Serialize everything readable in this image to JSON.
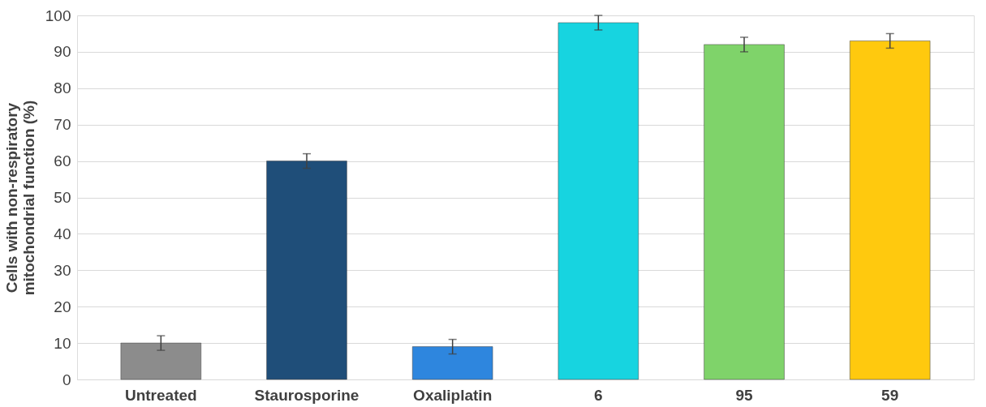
{
  "chart_data": {
    "type": "bar",
    "ylabel": "Cells with non-respiratory mitochondrial function (%)",
    "categories": [
      "Untreated",
      "Staurosporine",
      "Oxaliplatin",
      "6",
      "95",
      "59"
    ],
    "values": [
      10,
      60,
      9,
      98,
      92,
      93
    ],
    "errors": [
      2,
      2,
      2,
      2,
      2,
      2
    ],
    "colors": [
      "#8c8c8c",
      "#1f4e79",
      "#2e86de",
      "#17d4e0",
      "#7fd36a",
      "#ffc90e"
    ],
    "ylim": [
      0,
      100
    ],
    "yticks": [
      0,
      10,
      20,
      30,
      40,
      50,
      60,
      70,
      80,
      90,
      100
    ],
    "grid": "y",
    "legend": false
  }
}
